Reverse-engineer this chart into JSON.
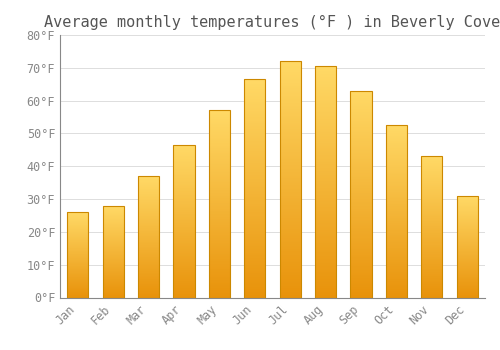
{
  "title": "Average monthly temperatures (°F ) in Beverly Cove",
  "months": [
    "Jan",
    "Feb",
    "Mar",
    "Apr",
    "May",
    "Jun",
    "Jul",
    "Aug",
    "Sep",
    "Oct",
    "Nov",
    "Dec"
  ],
  "values": [
    26,
    28,
    37,
    46.5,
    57,
    66.5,
    72,
    70.5,
    63,
    52.5,
    43,
    31
  ],
  "bar_color_bottom": "#E8920A",
  "bar_color_top": "#FFD966",
  "bar_edge_color": "#CC8800",
  "ylim": [
    0,
    80
  ],
  "ytick_step": 10,
  "background_color": "#FFFFFF",
  "grid_color": "#DDDDDD",
  "title_fontsize": 11,
  "tick_fontsize": 8.5,
  "tick_color": "#888888",
  "bar_width": 0.6
}
